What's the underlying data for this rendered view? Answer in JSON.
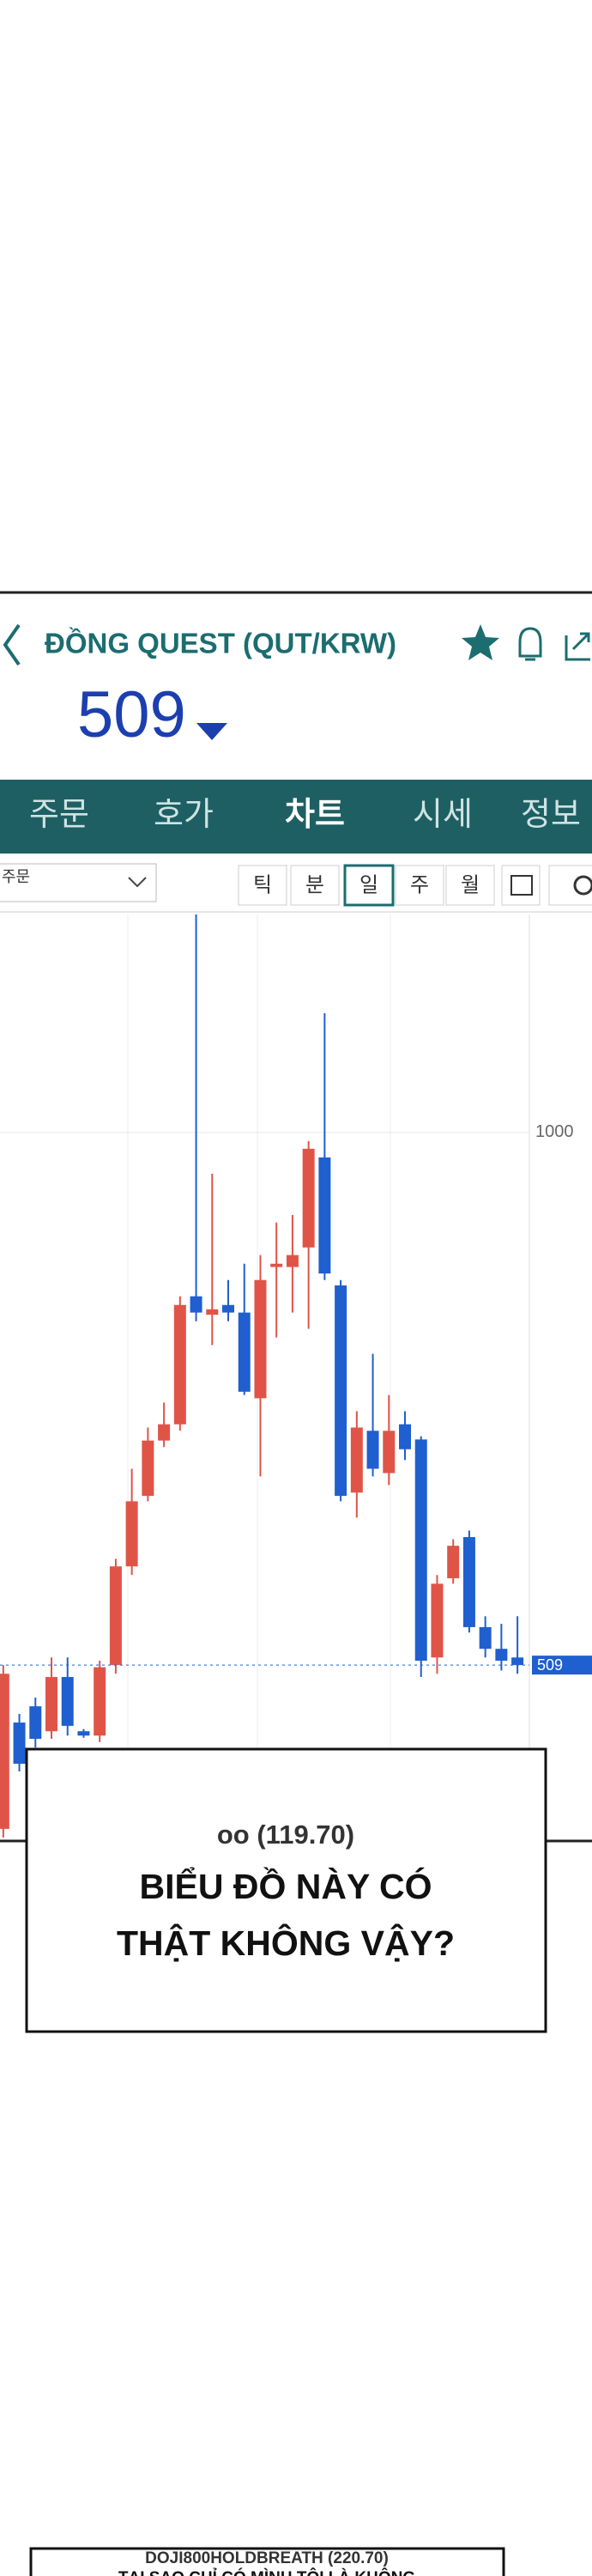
{
  "header": {
    "title": "ĐỒNG QUEST (QUT/KRW)",
    "price": "509"
  },
  "tabs": [
    "주문",
    "호가",
    "차트",
    "시세",
    "정보"
  ],
  "toolbar": {
    "dropdown": "주문",
    "periods": [
      "틱",
      "분",
      "일",
      "주",
      "월"
    ]
  },
  "chart_data": {
    "type": "candlestick",
    "open": [
      358,
      456,
      471,
      448,
      498,
      448,
      444,
      509,
      600,
      665,
      716,
      731,
      849,
      832,
      841,
      834,
      755,
      876,
      876,
      894,
      977,
      859,
      668,
      725,
      686,
      731,
      717,
      516,
      589,
      627,
      544,
      524,
      516
    ],
    "high": [
      509,
      464,
      479,
      516,
      516,
      450,
      513,
      607,
      690,
      728,
      751,
      849,
      1201,
      962,
      864,
      879,
      887,
      917,
      924,
      992,
      1110,
      864,
      743,
      796,
      758,
      743,
      720,
      592,
      625,
      633,
      554,
      547,
      554
    ],
    "low": [
      350,
      411,
      433,
      441,
      444,
      442,
      438,
      501,
      592,
      660,
      710,
      725,
      826,
      804,
      826,
      758,
      683,
      811,
      834,
      819,
      864,
      660,
      645,
      683,
      675,
      698,
      498,
      501,
      584,
      539,
      516,
      504,
      501
    ],
    "close": [
      501,
      418,
      441,
      498,
      453,
      444,
      507,
      600,
      660,
      716,
      731,
      841,
      834,
      837,
      834,
      761,
      864,
      879,
      887,
      985,
      870,
      665,
      728,
      690,
      725,
      708,
      513,
      584,
      619,
      544,
      524,
      513,
      509
    ],
    "ylim": [
      350,
      1201
    ],
    "yticks": [
      1000
    ],
    "last_price": 509,
    "up_color": "#e05448",
    "down_color": "#1f5fcf"
  },
  "bubble": {
    "user": "oo (119.70)",
    "lines": [
      "BIỂU ĐỒ NÀY CÓ",
      "THẬT KHÔNG VẬY?"
    ]
  },
  "bubble2": {
    "user": "DOJI800HOLDBREATH (220.70)",
    "lines": [
      "TẠI SAO CHỈ CÓ MÌNH TÔI LÀ KHÔNG"
    ]
  }
}
